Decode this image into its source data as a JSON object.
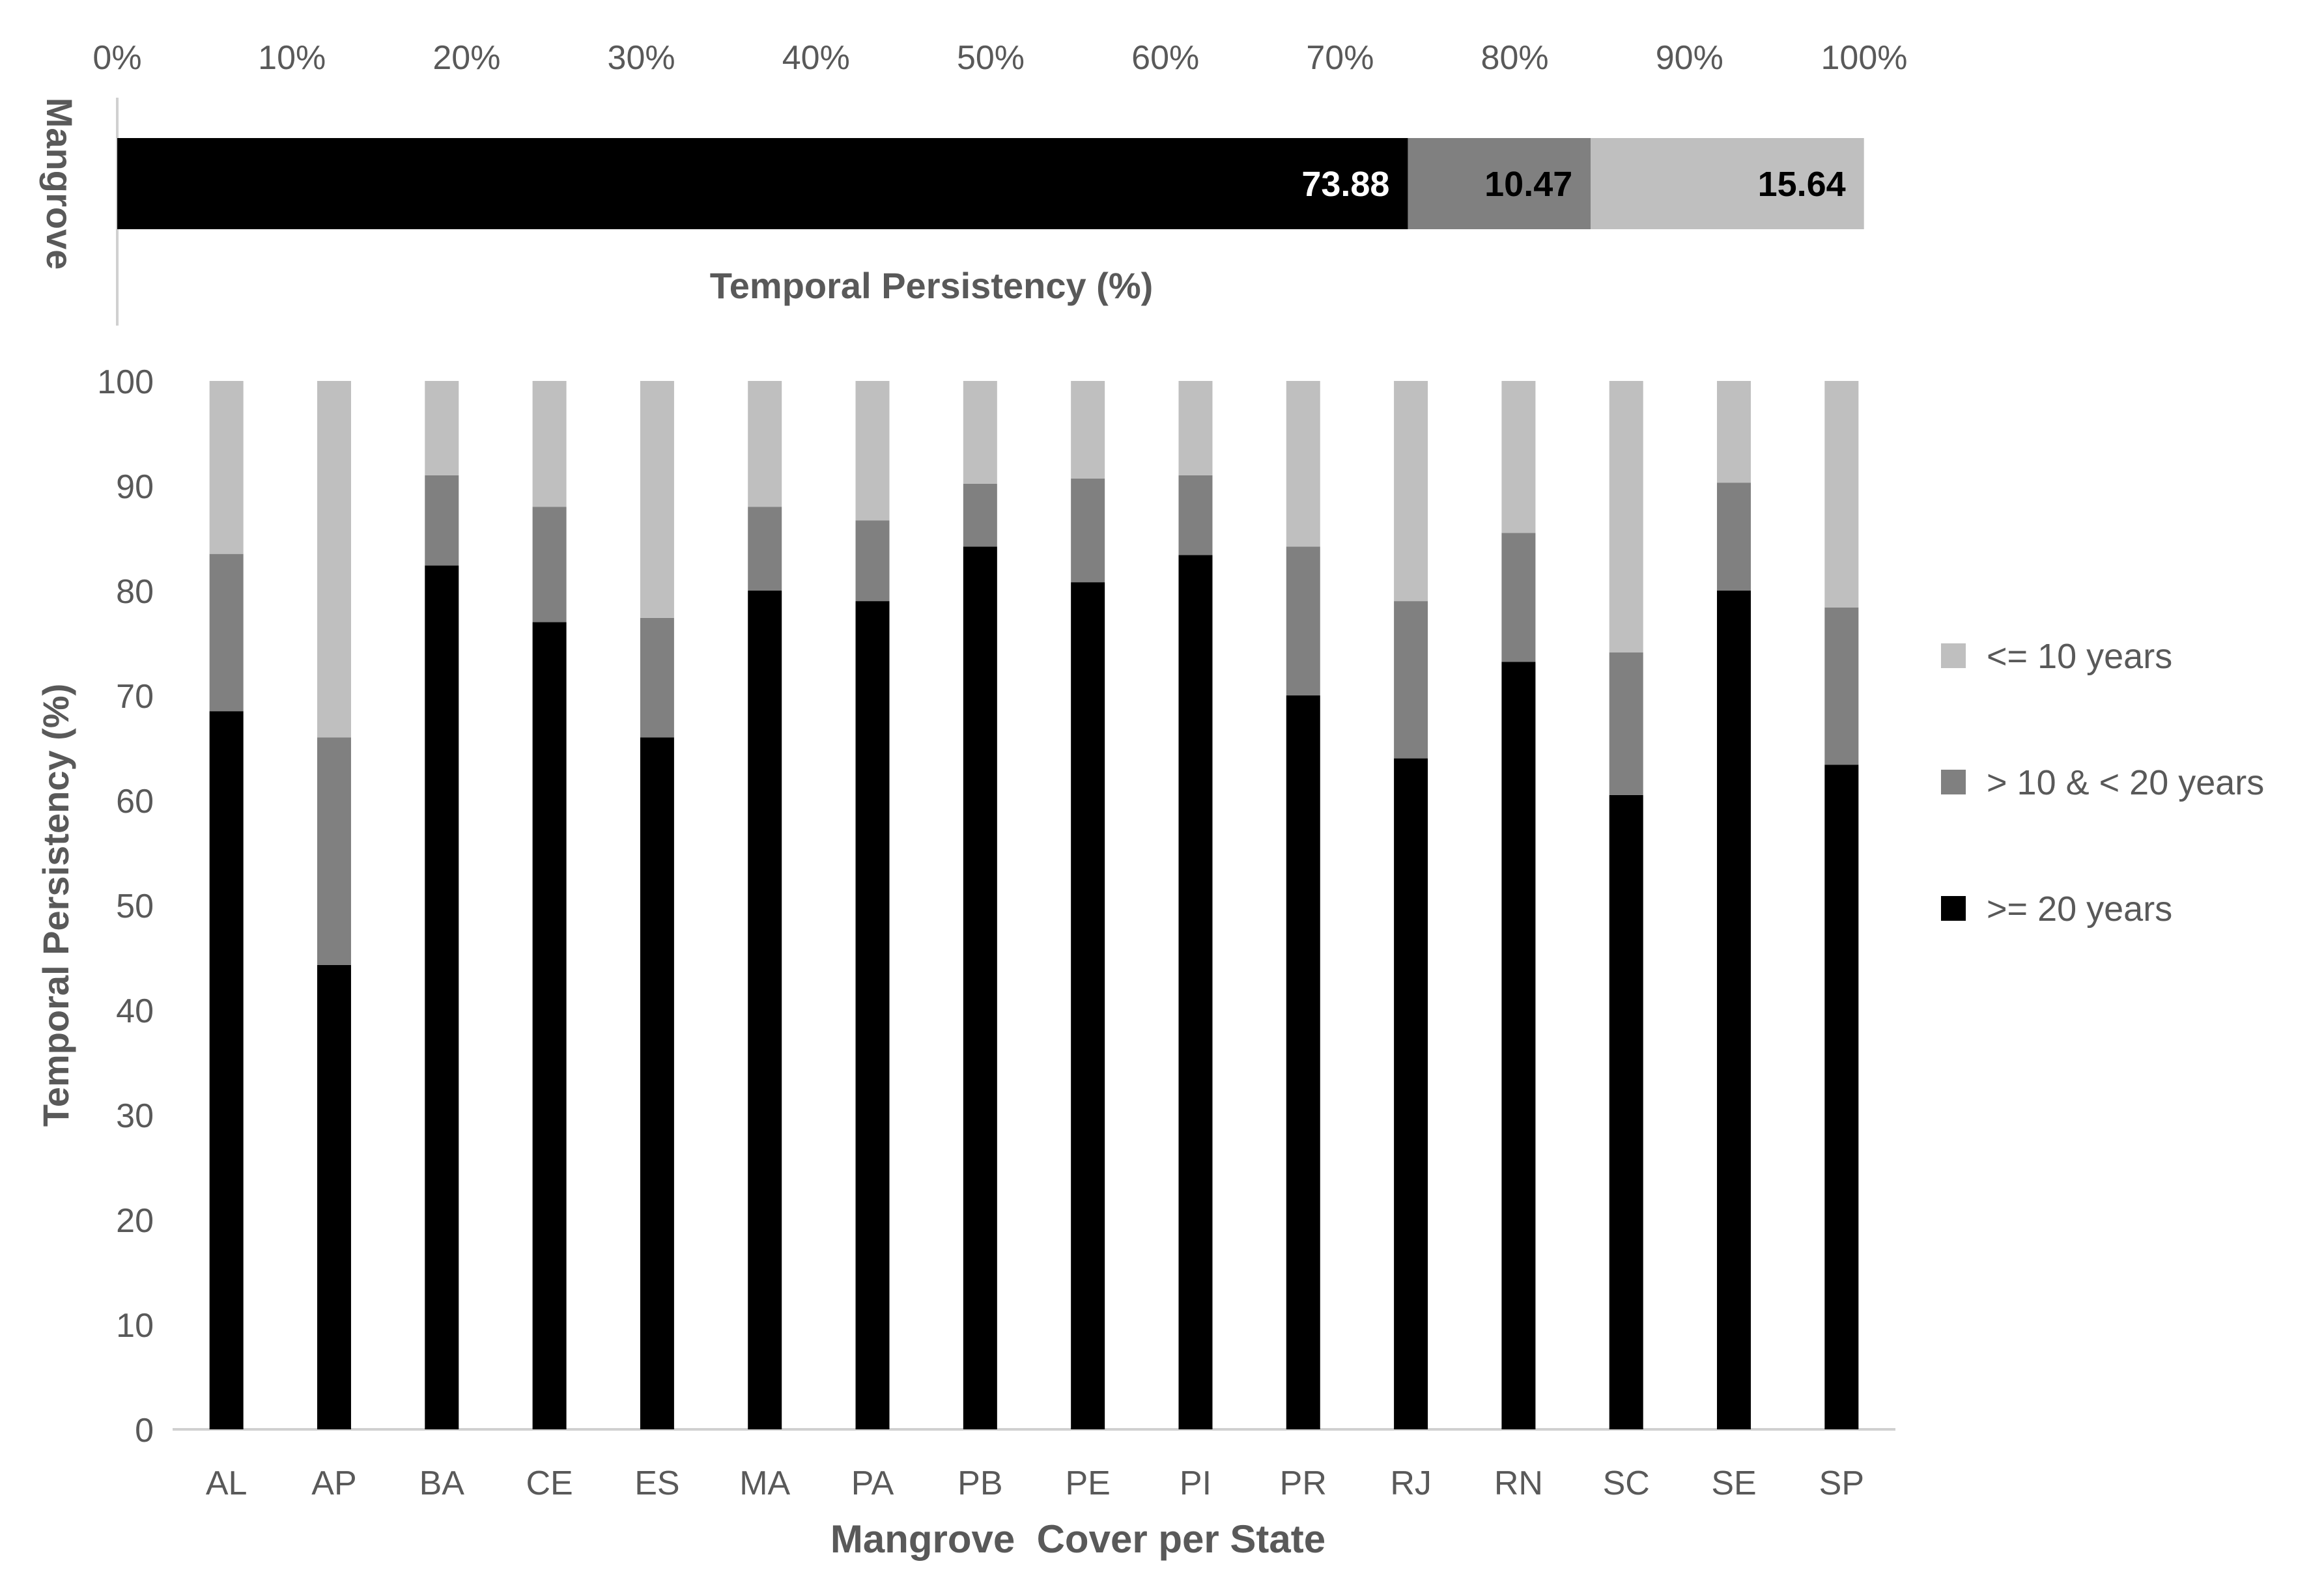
{
  "colors": {
    "ge20": "#000000",
    "mid": "#808080",
    "le10": "#bfbfbf",
    "axis": "#d0d0d0",
    "text": "#595959"
  },
  "chart_data": [
    {
      "type": "bar",
      "orientation": "horizontal",
      "stacked": true,
      "category_label": "Mangrove",
      "title": "",
      "xlabel": "Temporal Persistency (%)",
      "xlim": [
        0,
        100
      ],
      "x_ticks": [
        "0%",
        "10%",
        "20%",
        "30%",
        "40%",
        "50%",
        "60%",
        "70%",
        "80%",
        "90%",
        "100%"
      ],
      "series": [
        {
          "name": ">= 20 years",
          "value": 73.88,
          "label": "73.88"
        },
        {
          "name": "> 10 & < 20 years",
          "value": 10.47,
          "label": "10.47"
        },
        {
          "name": "<= 10 years",
          "value": 15.64,
          "label": "15.64"
        }
      ]
    },
    {
      "type": "bar",
      "orientation": "vertical",
      "stacked": true,
      "title": "",
      "xlabel": "Mangrove  Cover per State",
      "ylabel": "Temporal Persistency (%)",
      "ylim": [
        0,
        100
      ],
      "y_ticks": [
        "0",
        "10",
        "20",
        "30",
        "40",
        "50",
        "60",
        "70",
        "80",
        "90",
        "100"
      ],
      "categories": [
        "AL",
        "AP",
        "BA",
        "CE",
        "ES",
        "MA",
        "PA",
        "PB",
        "PE",
        "PI",
        "PR",
        "RJ",
        "RN",
        "SC",
        "SE",
        "SP"
      ],
      "series": [
        {
          "name": ">= 20 years",
          "values": [
            68.5,
            44.3,
            82.4,
            77.0,
            66.0,
            80.0,
            79.0,
            84.2,
            80.8,
            83.4,
            70.0,
            64.0,
            73.2,
            60.5,
            80.0,
            63.4
          ]
        },
        {
          "name": "> 10 & < 20 years",
          "values": [
            15.0,
            21.7,
            8.6,
            11.0,
            11.4,
            8.0,
            7.7,
            6.0,
            9.9,
            7.6,
            14.2,
            15.0,
            12.3,
            13.6,
            10.3,
            15.0
          ]
        },
        {
          "name": "<= 10 years",
          "values": [
            16.5,
            34.0,
            9.0,
            12.0,
            22.6,
            12.0,
            13.3,
            9.8,
            9.3,
            9.0,
            15.8,
            21.0,
            14.5,
            25.9,
            9.7,
            21.6
          ]
        }
      ],
      "legend": {
        "position": "right",
        "items": [
          {
            "name": "<= 10 years",
            "color_key": "le10"
          },
          {
            "name": "> 10 & < 20 years",
            "color_key": "mid"
          },
          {
            "name": ">= 20 years",
            "color_key": "ge20"
          }
        ]
      }
    }
  ]
}
